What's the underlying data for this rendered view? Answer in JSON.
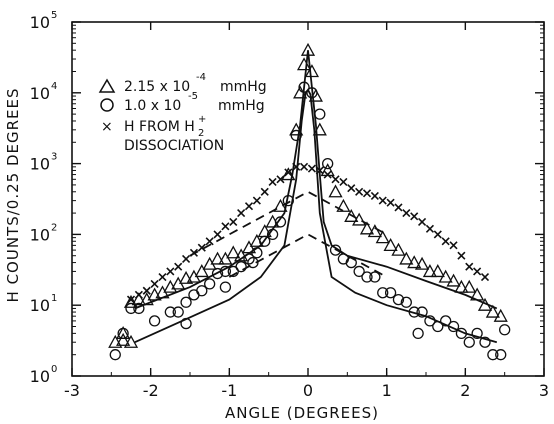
{
  "chart_data": {
    "type": "scatter",
    "title": "",
    "xlabel": "ANGLE (DEGREES)",
    "ylabel": "H COUNTS/0.25 DEGREES",
    "xlim": [
      -3,
      3
    ],
    "ylim": [
      1,
      100000
    ],
    "yscale": "log",
    "x_ticks": [
      "-3",
      "-2",
      "-1",
      "0",
      "1",
      "2",
      "3"
    ],
    "y_ticks": [
      "10",
      "10",
      "10",
      "10",
      "10",
      "10"
    ],
    "y_tick_exponents": [
      "0",
      "1",
      "2",
      "3",
      "4",
      "5"
    ],
    "legend_placement": "top-left",
    "legend": {
      "triangle": {
        "text": "2.15 x 10",
        "exp": "-4",
        "unit": "mmHg"
      },
      "circle": {
        "text": "1.0 x 10",
        "exp": "-5",
        "unit": "mmHg"
      },
      "x": {
        "line1": "H FROM H",
        "sub": "2",
        "sup": "+",
        "line2": "DISSOCIATION"
      }
    },
    "series": [
      {
        "marker": "triangle",
        "x": [
          -2.45,
          -2.35,
          -2.25,
          -2.15,
          -2.05,
          -1.95,
          -1.85,
          -1.75,
          -1.65,
          -1.55,
          -1.45,
          -1.35,
          -1.25,
          -1.15,
          -1.05,
          -0.95,
          -0.85,
          -0.75,
          -0.65,
          -0.55,
          -0.45,
          -0.35,
          -0.25,
          -0.15,
          -0.1,
          -0.05,
          0.0,
          0.05,
          0.1,
          0.15,
          0.25,
          0.35,
          0.45,
          0.55,
          0.65,
          0.75,
          0.85,
          0.95,
          1.05,
          1.15,
          1.25,
          1.35,
          1.45,
          1.55,
          1.65,
          1.75,
          1.85,
          1.95,
          2.05,
          2.15,
          2.25,
          2.35,
          2.45,
          -2.35,
          -2.25
        ],
        "values": [
          3,
          4,
          11,
          12,
          12,
          14,
          15,
          18,
          20,
          24,
          25,
          30,
          38,
          45,
          45,
          55,
          50,
          65,
          80,
          110,
          150,
          250,
          700,
          3000,
          10000,
          25000,
          40000,
          20000,
          9000,
          3000,
          800,
          400,
          250,
          180,
          160,
          120,
          110,
          90,
          70,
          60,
          45,
          40,
          38,
          30,
          30,
          25,
          22,
          18,
          18,
          14,
          10,
          8,
          7,
          3.2,
          3
        ]
      },
      {
        "marker": "circle",
        "x": [
          -2.45,
          -2.35,
          -2.25,
          -2.15,
          -1.95,
          -1.75,
          -1.65,
          -1.55,
          -1.45,
          -1.35,
          -1.25,
          -1.15,
          -1.05,
          -0.95,
          -0.85,
          -0.75,
          -0.65,
          -0.55,
          -0.45,
          -0.35,
          -0.25,
          -0.15,
          -0.05,
          0.05,
          0.15,
          0.25,
          0.35,
          0.45,
          0.55,
          0.65,
          0.75,
          0.85,
          0.95,
          1.05,
          1.15,
          1.25,
          1.35,
          1.45,
          1.55,
          1.65,
          1.75,
          1.85,
          1.95,
          2.05,
          2.15,
          2.25,
          2.35,
          2.45,
          -1.55,
          -1.05,
          -0.7,
          1.4,
          2.5
        ],
        "values": [
          2,
          4,
          9,
          9,
          6,
          8,
          8,
          11,
          14,
          16,
          20,
          28,
          30,
          30,
          35,
          45,
          55,
          80,
          100,
          150,
          300,
          2500,
          12000,
          10000,
          5000,
          1000,
          60,
          45,
          40,
          30,
          25,
          25,
          15,
          15,
          12,
          11,
          8,
          8,
          6,
          5,
          6,
          5,
          4,
          3,
          4,
          3,
          2,
          2,
          5.5,
          18,
          40,
          4,
          4.5
        ]
      },
      {
        "marker": "x",
        "x": [
          -2.25,
          -2.15,
          -2.05,
          -1.95,
          -1.85,
          -1.75,
          -1.65,
          -1.55,
          -1.45,
          -1.35,
          -1.25,
          -1.15,
          -1.05,
          -0.95,
          -0.85,
          -0.75,
          -0.65,
          -0.55,
          -0.45,
          -0.35,
          -0.25,
          -0.15,
          -0.05,
          0.05,
          0.15,
          0.25,
          0.35,
          0.45,
          0.55,
          0.65,
          0.75,
          0.85,
          0.95,
          1.05,
          1.15,
          1.25,
          1.35,
          1.45,
          1.55,
          1.65,
          1.75,
          1.85,
          1.95,
          2.05,
          2.15,
          2.25
        ],
        "values": [
          12,
          14,
          16,
          20,
          25,
          30,
          35,
          45,
          55,
          65,
          80,
          100,
          130,
          150,
          200,
          250,
          300,
          400,
          550,
          600,
          750,
          900,
          900,
          850,
          800,
          700,
          600,
          550,
          450,
          400,
          380,
          350,
          300,
          280,
          240,
          200,
          180,
          150,
          120,
          100,
          80,
          70,
          50,
          35,
          30,
          25
        ]
      }
    ],
    "fit_lines": [
      {
        "style": "solid",
        "x": [
          -2.2,
          -1.5,
          -1.0,
          -0.6,
          -0.3,
          -0.2,
          -0.1,
          -0.05,
          0.0,
          0.05,
          0.1,
          0.15,
          0.2,
          0.3,
          0.5,
          1.0,
          1.5,
          2.0,
          2.4
        ],
        "values": [
          9,
          18,
          35,
          70,
          200,
          700,
          3500,
          12000,
          40000,
          12000,
          3500,
          700,
          150,
          70,
          50,
          35,
          22,
          14,
          9
        ]
      },
      {
        "style": "solid",
        "x": [
          -2.2,
          -1.6,
          -1.0,
          -0.6,
          -0.3,
          -0.15,
          -0.08,
          -0.03,
          0.0,
          0.03,
          0.08,
          0.15,
          0.3,
          0.6,
          1.0,
          1.5,
          2.0,
          2.4
        ],
        "values": [
          3,
          6,
          12,
          25,
          70,
          600,
          4000,
          10000,
          11000,
          9500,
          3000,
          200,
          25,
          15,
          10,
          7,
          4,
          3
        ]
      },
      {
        "style": "dashed",
        "x": [
          -1.5,
          -1.0,
          -0.5,
          0.0,
          0.5,
          1.0
        ],
        "values": [
          50,
          100,
          200,
          400,
          200,
          100
        ]
      },
      {
        "style": "dashed",
        "x": [
          -1.0,
          -0.5,
          0.0,
          0.5,
          1.0
        ],
        "values": [
          25,
          50,
          100,
          50,
          25
        ]
      }
    ]
  }
}
